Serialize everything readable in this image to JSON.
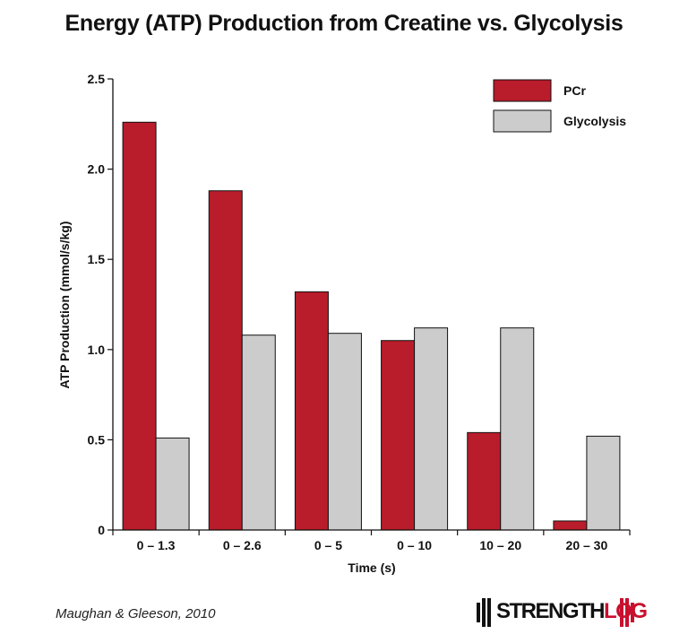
{
  "chart_data": {
    "type": "bar",
    "title": "Energy (ATP) Production from Creatine vs. Glycolysis",
    "xlabel": "Time (s)",
    "ylabel": "ATP Production (mmol/s/kg)",
    "categories": [
      "0 – 1.3",
      "0 – 2.6",
      "0 – 5",
      "0 – 10",
      "10 – 20",
      "20 – 30"
    ],
    "series": [
      {
        "name": "PCr",
        "color": "#b91c2a",
        "values": [
          2.26,
          1.88,
          1.32,
          1.05,
          0.54,
          0.05
        ]
      },
      {
        "name": "Glycolysis",
        "color": "#cccccc",
        "values": [
          0.51,
          1.08,
          1.09,
          1.12,
          1.12,
          0.52
        ]
      }
    ],
    "ylim": [
      0,
      2.5
    ],
    "yticks": [
      {
        "value": 0,
        "label": "0"
      },
      {
        "value": 0.5,
        "label": "0.5"
      },
      {
        "value": 1.0,
        "label": "1.0"
      },
      {
        "value": 1.5,
        "label": "1.5"
      },
      {
        "value": 2.0,
        "label": "2.0"
      },
      {
        "value": 2.5,
        "label": "2.5"
      }
    ],
    "grid": false,
    "legend_position": "top-right"
  },
  "footer": {
    "source": "Maughan & Gleeson, 2010",
    "logo_text_main": "STRENGTH",
    "logo_text_accent": "LOG"
  }
}
